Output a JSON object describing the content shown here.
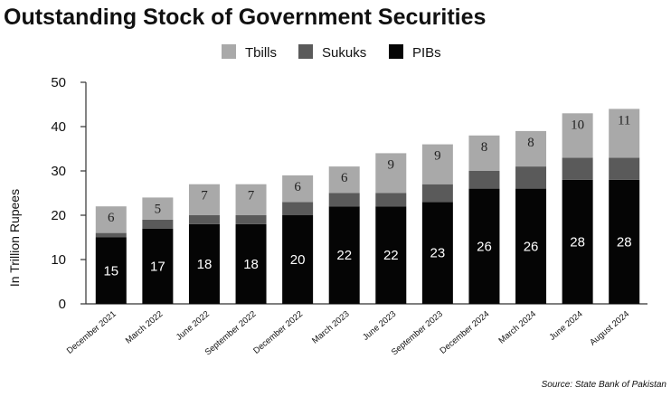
{
  "chart_data": {
    "type": "bar",
    "stacked": true,
    "title": "Outstanding Stock of Government Securities",
    "ylabel": "In Trillion Rupees",
    "xlabel": "",
    "ylim": [
      0,
      50
    ],
    "yticks": [
      0,
      10,
      20,
      30,
      40,
      50
    ],
    "categories": [
      "December 2021",
      "March 2022",
      "June 2022",
      "September 2022",
      "December 2022",
      "March 2023",
      "June 2023",
      "September 2023",
      "December 2024",
      "March 2024",
      "June 2024",
      "August 2024"
    ],
    "series": [
      {
        "name": "PIBs",
        "color": "#050505",
        "values": [
          15,
          17,
          18,
          18,
          20,
          22,
          22,
          23,
          26,
          26,
          28,
          28
        ],
        "labels": [
          "15",
          "17",
          "18",
          "18",
          "20",
          "22",
          "22",
          "23",
          "26",
          "26",
          "28",
          "28"
        ]
      },
      {
        "name": "Sukuks",
        "color": "#5a5a5a",
        "values": [
          1,
          2,
          2,
          2,
          3,
          3,
          3,
          4,
          4,
          5,
          5,
          5
        ],
        "labels": null
      },
      {
        "name": "Tbills",
        "color": "#a9a9a9",
        "values": [
          6,
          5,
          7,
          7,
          6,
          6,
          9,
          9,
          8,
          8,
          10,
          11
        ],
        "labels": [
          "6",
          "5",
          "7",
          "7",
          "6",
          "6",
          "9",
          "9",
          "8",
          "8",
          "10",
          "11"
        ]
      }
    ],
    "legend": [
      "Tbills",
      "Sukuks",
      "PIBs"
    ],
    "legend_position": "top-center",
    "grid": false,
    "source": "Source: State Bank of Pakistan"
  }
}
